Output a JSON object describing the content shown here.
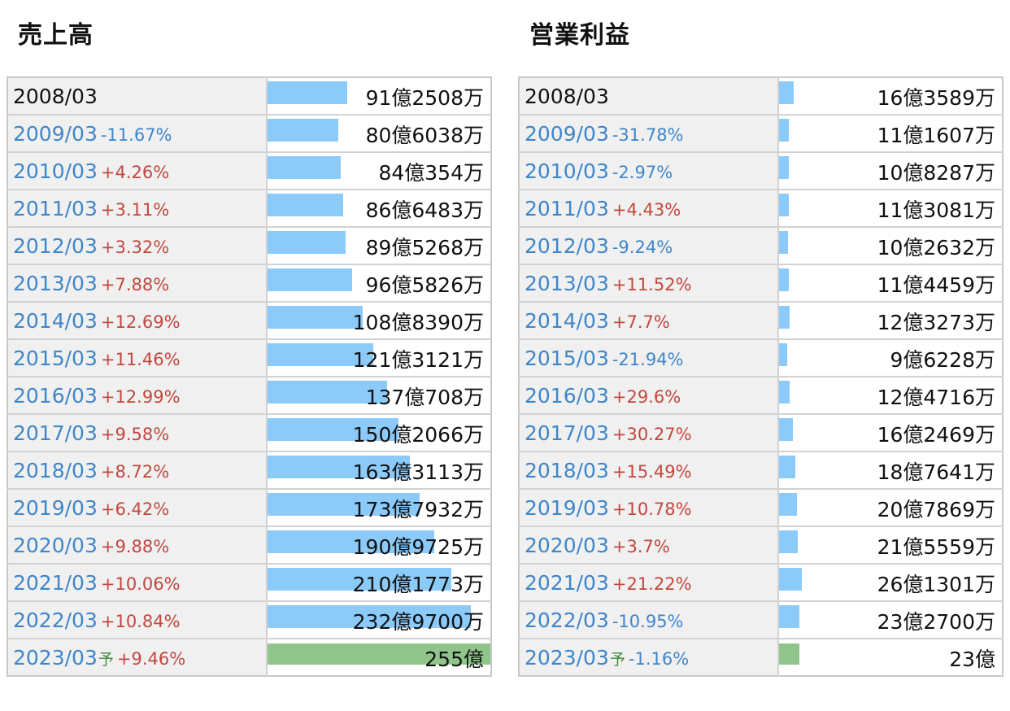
{
  "chart_data": [
    {
      "type": "bar",
      "title": "売上高",
      "categories": [
        "2008/03",
        "2009/03",
        "2010/03",
        "2011/03",
        "2012/03",
        "2013/03",
        "2014/03",
        "2015/03",
        "2016/03",
        "2017/03",
        "2018/03",
        "2019/03",
        "2020/03",
        "2021/03",
        "2022/03",
        "2023/03"
      ],
      "values": [
        91.2508,
        80.6038,
        84.0354,
        86.6483,
        89.5268,
        96.5826,
        108.839,
        121.3121,
        137.0708,
        150.2066,
        163.3113,
        173.7932,
        190.9725,
        210.1773,
        232.97,
        255
      ],
      "value_labels": [
        "91億2508万",
        "80億6038万",
        "84億354万",
        "86億6483万",
        "89億5268万",
        "96億5826万",
        "108億8390万",
        "121億3121万",
        "137億708万",
        "150億2066万",
        "163億3113万",
        "173億7932万",
        "190億9725万",
        "210億1773万",
        "232億9700万",
        "255億"
      ],
      "changes": [
        "",
        "-11.67%",
        "+4.26%",
        "+3.11%",
        "+3.32%",
        "+7.88%",
        "+12.69%",
        "+11.46%",
        "+12.99%",
        "+9.58%",
        "+8.72%",
        "+6.42%",
        "+9.88%",
        "+10.06%",
        "+10.84%",
        "+9.46%"
      ],
      "forecast_mark": "予",
      "xlim": [
        0,
        255
      ],
      "colors": {
        "actual": "#8ccafa",
        "forecast": "#8fc58a",
        "up": "#c2473e",
        "down": "#3f86c9"
      }
    },
    {
      "type": "bar",
      "title": "営業利益",
      "categories": [
        "2008/03",
        "2009/03",
        "2010/03",
        "2011/03",
        "2012/03",
        "2013/03",
        "2014/03",
        "2015/03",
        "2016/03",
        "2017/03",
        "2018/03",
        "2019/03",
        "2020/03",
        "2021/03",
        "2022/03",
        "2023/03"
      ],
      "values": [
        16.3589,
        11.1607,
        10.8287,
        11.3081,
        10.2632,
        11.4459,
        12.3273,
        9.6228,
        12.4716,
        16.2469,
        18.7641,
        20.7869,
        21.5559,
        26.1301,
        23.27,
        23
      ],
      "value_labels": [
        "16億3589万",
        "11億1607万",
        "10億8287万",
        "11億3081万",
        "10億2632万",
        "11億4459万",
        "12億3273万",
        "9億6228万",
        "12億4716万",
        "16億2469万",
        "18億7641万",
        "20億7869万",
        "21億5559万",
        "26億1301万",
        "23億2700万",
        "23億"
      ],
      "changes": [
        "",
        "-31.78%",
        "-2.97%",
        "+4.43%",
        "-9.24%",
        "+11.52%",
        "+7.7%",
        "-21.94%",
        "+29.6%",
        "+30.27%",
        "+15.49%",
        "+10.78%",
        "+3.7%",
        "+21.22%",
        "-10.95%",
        "-1.16%"
      ],
      "forecast_mark": "予",
      "xlim": [
        0,
        255
      ],
      "colors": {
        "actual": "#8ccafa",
        "forecast": "#8fc58a",
        "up": "#c2473e",
        "down": "#3f86c9"
      }
    }
  ]
}
